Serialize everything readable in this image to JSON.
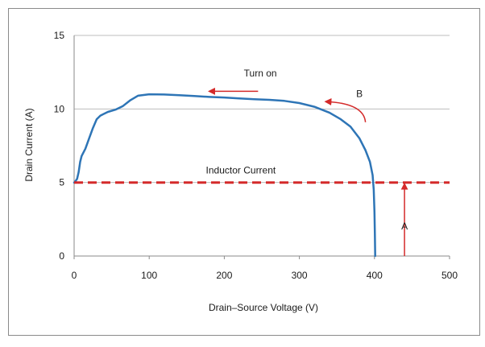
{
  "chart_data": {
    "type": "line",
    "title": "",
    "xlabel": "Drain–Source Voltage (V)",
    "ylabel": "Drain Current (A)",
    "xlim": [
      0,
      500
    ],
    "ylim": [
      0,
      15
    ],
    "x_ticks": [
      0,
      100,
      200,
      300,
      400,
      500
    ],
    "y_ticks": [
      0,
      5,
      10,
      15
    ],
    "grid": "horizontal",
    "legend": "none",
    "series": [
      {
        "color": "#2e75b6",
        "style": "solid",
        "points": [
          [
            401,
            0
          ],
          [
            400.5,
            1.5
          ],
          [
            400,
            3
          ],
          [
            399,
            4.5
          ],
          [
            397.5,
            5.5
          ],
          [
            394,
            6.4
          ],
          [
            388,
            7.2
          ],
          [
            380,
            8.0
          ],
          [
            368,
            8.8
          ],
          [
            355,
            9.3
          ],
          [
            340,
            9.75
          ],
          [
            320,
            10.15
          ],
          [
            300,
            10.4
          ],
          [
            280,
            10.55
          ],
          [
            260,
            10.62
          ],
          [
            240,
            10.66
          ],
          [
            220,
            10.72
          ],
          [
            200,
            10.78
          ],
          [
            180,
            10.82
          ],
          [
            160,
            10.88
          ],
          [
            140,
            10.93
          ],
          [
            120,
            10.98
          ],
          [
            100,
            11.0
          ],
          [
            85,
            10.9
          ],
          [
            75,
            10.6
          ],
          [
            65,
            10.2
          ],
          [
            55,
            9.95
          ],
          [
            45,
            9.8
          ],
          [
            35,
            9.55
          ],
          [
            30,
            9.3
          ],
          [
            25,
            8.7
          ],
          [
            20,
            8.0
          ],
          [
            15,
            7.3
          ],
          [
            10,
            6.8
          ],
          [
            8,
            6.4
          ],
          [
            6,
            5.7
          ],
          [
            4,
            5.25
          ],
          [
            2,
            5.1
          ],
          [
            0,
            5.0
          ]
        ]
      },
      {
        "name": "Inductor Current",
        "color": "#d42a2a",
        "style": "dashed",
        "points": [
          [
            0,
            5
          ],
          [
            500,
            5
          ]
        ]
      }
    ],
    "annotations": [
      {
        "text": "Inductor Current",
        "x": 222,
        "y": 5.6
      },
      {
        "text": "Turn on",
        "x": 248,
        "y": 12.2
      },
      {
        "text": "B",
        "x": 380,
        "y": 10.8
      },
      {
        "text": "A",
        "x": 440,
        "y": 1.8
      }
    ],
    "arrows": [
      {
        "name": "turn-on-arrow",
        "color": "#d42a2a",
        "from": [
          245,
          11.2
        ],
        "to": [
          180,
          11.2
        ]
      },
      {
        "name": "b-curved-arrow",
        "color": "#d42a2a",
        "from": [
          388,
          9.1
        ],
        "to": [
          335,
          10.5
        ],
        "curved": true
      },
      {
        "name": "a-arrow",
        "color": "#d42a2a",
        "from": [
          440,
          0
        ],
        "to": [
          440,
          4.9
        ]
      }
    ]
  }
}
